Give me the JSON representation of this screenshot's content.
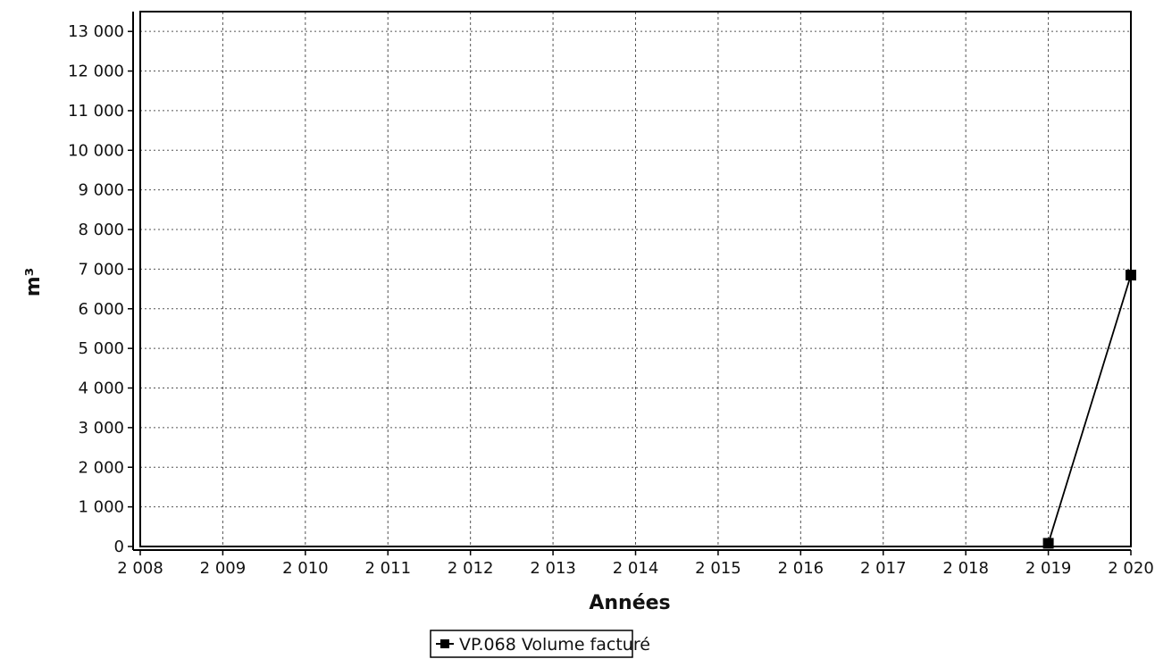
{
  "chart_data": {
    "type": "line",
    "title": "",
    "xlabel": "Années",
    "ylabel": "m³",
    "x": [
      2019,
      2020
    ],
    "series": [
      {
        "name": "VP.068 Volume facturé",
        "values": [
          80,
          6850
        ],
        "color": "#000000",
        "marker": "square"
      }
    ],
    "xlim": [
      2008,
      2020
    ],
    "ylim": [
      0,
      13500
    ],
    "xticks": [
      {
        "value": 2008,
        "label": "2 008"
      },
      {
        "value": 2009,
        "label": "2 009"
      },
      {
        "value": 2010,
        "label": "2 010"
      },
      {
        "value": 2011,
        "label": "2 011"
      },
      {
        "value": 2012,
        "label": "2 012"
      },
      {
        "value": 2013,
        "label": "2 013"
      },
      {
        "value": 2014,
        "label": "2 014"
      },
      {
        "value": 2015,
        "label": "2 015"
      },
      {
        "value": 2016,
        "label": "2 016"
      },
      {
        "value": 2017,
        "label": "2 017"
      },
      {
        "value": 2018,
        "label": "2 018"
      },
      {
        "value": 2019,
        "label": "2 019"
      },
      {
        "value": 2020,
        "label": "2 020"
      }
    ],
    "yticks": [
      {
        "value": 0,
        "label": "0"
      },
      {
        "value": 1000,
        "label": "1 000"
      },
      {
        "value": 2000,
        "label": "2 000"
      },
      {
        "value": 3000,
        "label": "3 000"
      },
      {
        "value": 4000,
        "label": "4 000"
      },
      {
        "value": 5000,
        "label": "5 000"
      },
      {
        "value": 6000,
        "label": "6 000"
      },
      {
        "value": 7000,
        "label": "7 000"
      },
      {
        "value": 8000,
        "label": "8 000"
      },
      {
        "value": 9000,
        "label": "9 000"
      },
      {
        "value": 10000,
        "label": "10 000"
      },
      {
        "value": 11000,
        "label": "11 000"
      },
      {
        "value": 12000,
        "label": "12 000"
      },
      {
        "value": 13000,
        "label": "13 000"
      }
    ],
    "grid": true,
    "legend": "bottom-center"
  }
}
